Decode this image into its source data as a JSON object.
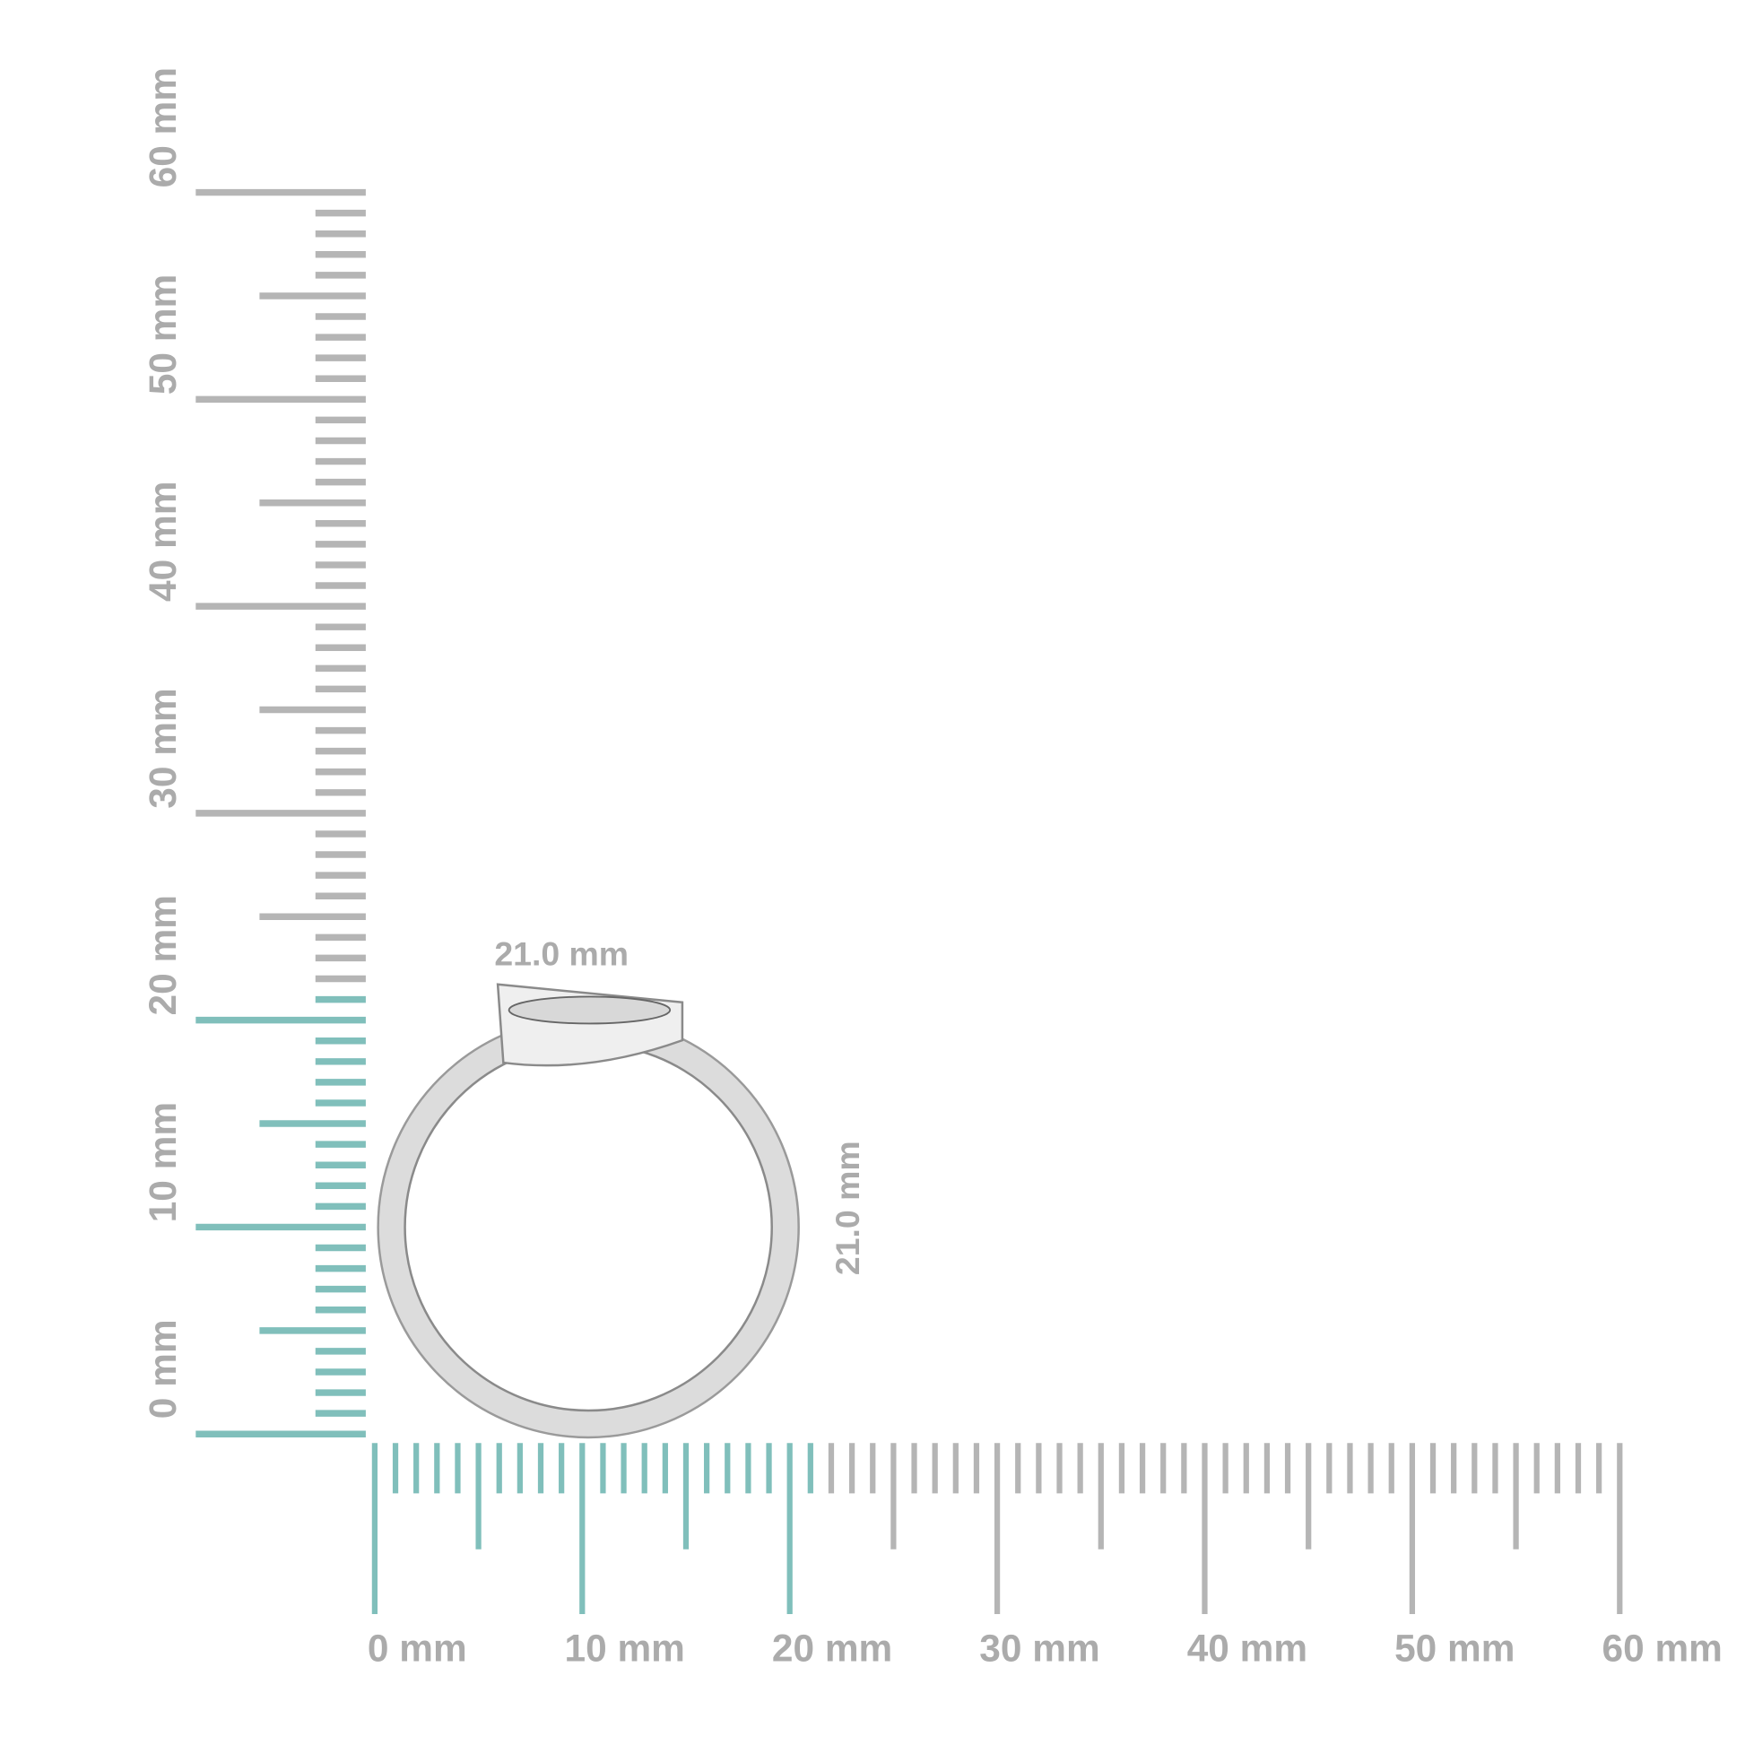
{
  "ruler_x": {
    "labels": [
      "0 mm",
      "10 mm",
      "20 mm",
      "30 mm",
      "40 mm",
      "50 mm",
      "60 mm"
    ]
  },
  "ruler_y": {
    "labels": [
      "0 mm",
      "10 mm",
      "20 mm",
      "30 mm",
      "40 mm",
      "50 mm",
      "60 mm"
    ]
  },
  "measurements": {
    "width": "21.0 mm",
    "height": "21.0 mm"
  }
}
